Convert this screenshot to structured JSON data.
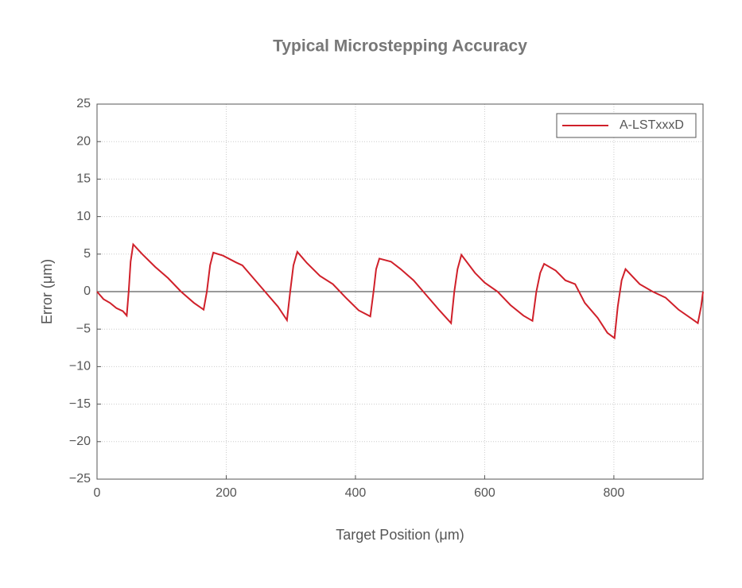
{
  "chart_data": {
    "type": "line",
    "title": "Typical Microstepping Accuracy",
    "xlabel": "Target Position (μm)",
    "ylabel": "Error (μm)",
    "x": [
      0,
      10,
      20,
      30,
      40,
      46,
      49,
      52,
      56,
      70,
      90,
      110,
      130,
      150,
      165,
      170,
      175,
      180,
      195,
      215,
      225,
      240,
      260,
      280,
      294,
      299,
      304,
      310,
      325,
      345,
      365,
      385,
      405,
      423,
      428,
      432,
      437,
      455,
      470,
      490,
      510,
      530,
      548,
      553,
      558,
      564,
      585,
      600,
      620,
      640,
      660,
      674,
      680,
      686,
      692,
      710,
      725,
      740,
      755,
      775,
      790,
      801,
      806,
      812,
      818,
      840,
      860,
      880,
      900,
      920,
      930,
      935,
      938
    ],
    "series": [
      {
        "name": "A-LSTxxxD",
        "color": "#d0202a",
        "values": [
          0,
          -1,
          -1.5,
          -2.2,
          -2.6,
          -3.2,
          0,
          4,
          6.3,
          5,
          3.3,
          1.8,
          0,
          -1.5,
          -2.4,
          0,
          3.5,
          5.2,
          4.8,
          3.9,
          3.5,
          2,
          0,
          -2,
          -3.8,
          0,
          3.5,
          5.3,
          3.8,
          2.1,
          1,
          -0.8,
          -2.5,
          -3.3,
          0,
          3,
          4.4,
          4,
          3,
          1.5,
          -0.5,
          -2.5,
          -4.2,
          0,
          3,
          4.9,
          2.5,
          1.2,
          0,
          -1.8,
          -3.2,
          -3.9,
          0,
          2.5,
          3.7,
          2.8,
          1.5,
          1,
          -1.5,
          -3.5,
          -5.5,
          -6.2,
          -2,
          1.5,
          3,
          1,
          0,
          -0.8,
          -2.4,
          -3.6,
          -4.2,
          -2,
          0
        ]
      }
    ],
    "xlim": [
      0,
      938
    ],
    "ylim": [
      -25,
      25
    ],
    "xticks": [
      0,
      200,
      400,
      600,
      800
    ],
    "yticks": [
      {
        "value": -25,
        "label": "−25"
      },
      {
        "value": -20,
        "label": "−20"
      },
      {
        "value": -15,
        "label": "−15"
      },
      {
        "value": -10,
        "label": "−10"
      },
      {
        "value": -5,
        "label": "−5"
      },
      0,
      5,
      10,
      15,
      20,
      25
    ],
    "hline": 0,
    "grid": true,
    "legend": "upper right"
  }
}
